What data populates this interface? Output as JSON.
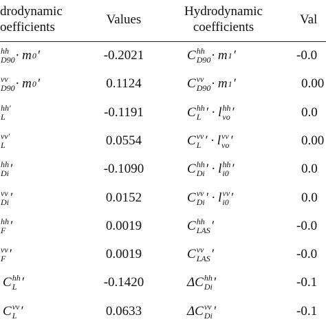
{
  "table": {
    "header": [
      [
        "drodynamic",
        "oefficients"
      ],
      [
        "Values"
      ],
      [
        "Hydrodynamic",
        "coefficients"
      ],
      [
        "Val"
      ]
    ],
    "rows": [
      {
        "c1": [
          {
            "sup": "hh",
            "sub": "D90"
          },
          " · m",
          {
            "sup": "",
            "sub": "0"
          },
          "′"
        ],
        "v1": "-0.2021",
        "c3": [
          "C",
          {
            "sup": "hh",
            "sub": "D90"
          },
          " · m",
          {
            "sup": "",
            "sub": "1"
          },
          "′"
        ],
        "v3": "-0.0"
      },
      {
        "c1": [
          {
            "sup": "vv",
            "sub": "D90"
          },
          " · m",
          {
            "sup": "",
            "sub": "0"
          },
          "′"
        ],
        "v1": "0.1124",
        "c3": [
          "C",
          {
            "sup": "vv",
            "sub": "D90"
          },
          " · m",
          {
            "sup": "",
            "sub": "1"
          },
          "′"
        ],
        "v3": "0.00"
      },
      {
        "c1": [
          {
            "sup": "hh′",
            "sub": "L"
          }
        ],
        "v1": "-0.1191",
        "c3": [
          "C",
          {
            "sup": "hh",
            "sub": "L"
          },
          "′ · l",
          {
            "sup": "hh",
            "sub": "vo"
          },
          "′"
        ],
        "v3": "0.0"
      },
      {
        "c1": [
          {
            "sup": "vv′",
            "sub": "L"
          }
        ],
        "v1": "0.0554",
        "c3": [
          "C",
          {
            "sup": "vv",
            "sub": "L"
          },
          "′ · l",
          {
            "sup": "vv",
            "sub": "vo"
          },
          "′"
        ],
        "v3": "0.00"
      },
      {
        "c1": [
          {
            "sup": "hh",
            "sub": "Di"
          },
          " ′"
        ],
        "v1": "-0.1090",
        "c3": [
          "C",
          {
            "sup": "hh",
            "sub": "Di"
          },
          "′ · l",
          {
            "sup": "hh",
            "sub": "i0"
          },
          "′"
        ],
        "v3": "0.0"
      },
      {
        "c1": [
          {
            "sup": "vv",
            "sub": "Di"
          },
          " ′"
        ],
        "v1": "0.0152",
        "c3": [
          "C",
          {
            "sup": "vv",
            "sub": "Di"
          },
          "′ · l",
          {
            "sup": "vv",
            "sub": "i0"
          },
          "′"
        ],
        "v3": "0.0"
      },
      {
        "c1": [
          {
            "sup": "hh",
            "sub": "F"
          },
          " ′"
        ],
        "v1": "0.0019",
        "c3": [
          "C",
          {
            "sup": "hh",
            "sub": "LAS"
          },
          " ′"
        ],
        "v3": "-0.0"
      },
      {
        "c1": [
          {
            "sup": "vv",
            "sub": "F"
          },
          " ′"
        ],
        "v1": "0.0019",
        "c3": [
          "C",
          {
            "sup": "vv",
            "sub": "LAS"
          },
          " ′"
        ],
        "v3": "-0.0"
      },
      {
        "c1": [
          "C",
          {
            "sup": "hh",
            "sub": "L"
          },
          " ′"
        ],
        "v1": "-0.1420",
        "c3": [
          "ΔC",
          {
            "sup": "hh",
            "sub": "Di"
          },
          " ′"
        ],
        "v3": "-0.1"
      },
      {
        "c1": [
          "C",
          {
            "sup": "vv",
            "sub": "L"
          },
          " ′"
        ],
        "v1": "0.0633",
        "c3": [
          "ΔC",
          {
            "sup": "vv",
            "sub": "Di"
          },
          " ′"
        ],
        "v3": "-0.1"
      }
    ]
  }
}
